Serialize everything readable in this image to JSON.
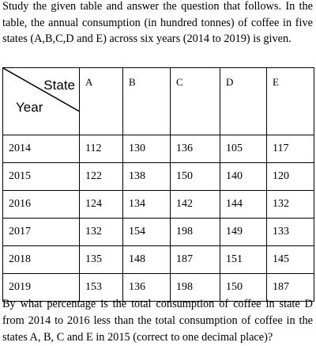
{
  "intro": "Study the given table and answer the question that follows. In the table, the annual consumption (in hundred tonnes) of coffee in five states (A,B,C,D and E) across six years (2014 to 2019) is given.",
  "table": {
    "corner": {
      "column_header": "State",
      "row_header": "Year"
    },
    "columns": [
      "A",
      "B",
      "C",
      "D",
      "E"
    ],
    "rows": [
      [
        "2014",
        "112",
        "130",
        "136",
        "105",
        "117"
      ],
      [
        "2015",
        "122",
        "138",
        "150",
        "140",
        "120"
      ],
      [
        "2016",
        "124",
        "134",
        "142",
        "144",
        "132"
      ],
      [
        "2017",
        "132",
        "154",
        "198",
        "149",
        "133"
      ],
      [
        "2018",
        "135",
        "148",
        "187",
        "151",
        "145"
      ],
      [
        "2019",
        "153",
        "136",
        "198",
        "150",
        "187"
      ]
    ]
  },
  "question": "By what percentage is the total consumption of coffee in state D from 2014 to 2016 less than the total consumption of coffee in the states A, B, C and E in 2015 (correct to one decimal place)?"
}
